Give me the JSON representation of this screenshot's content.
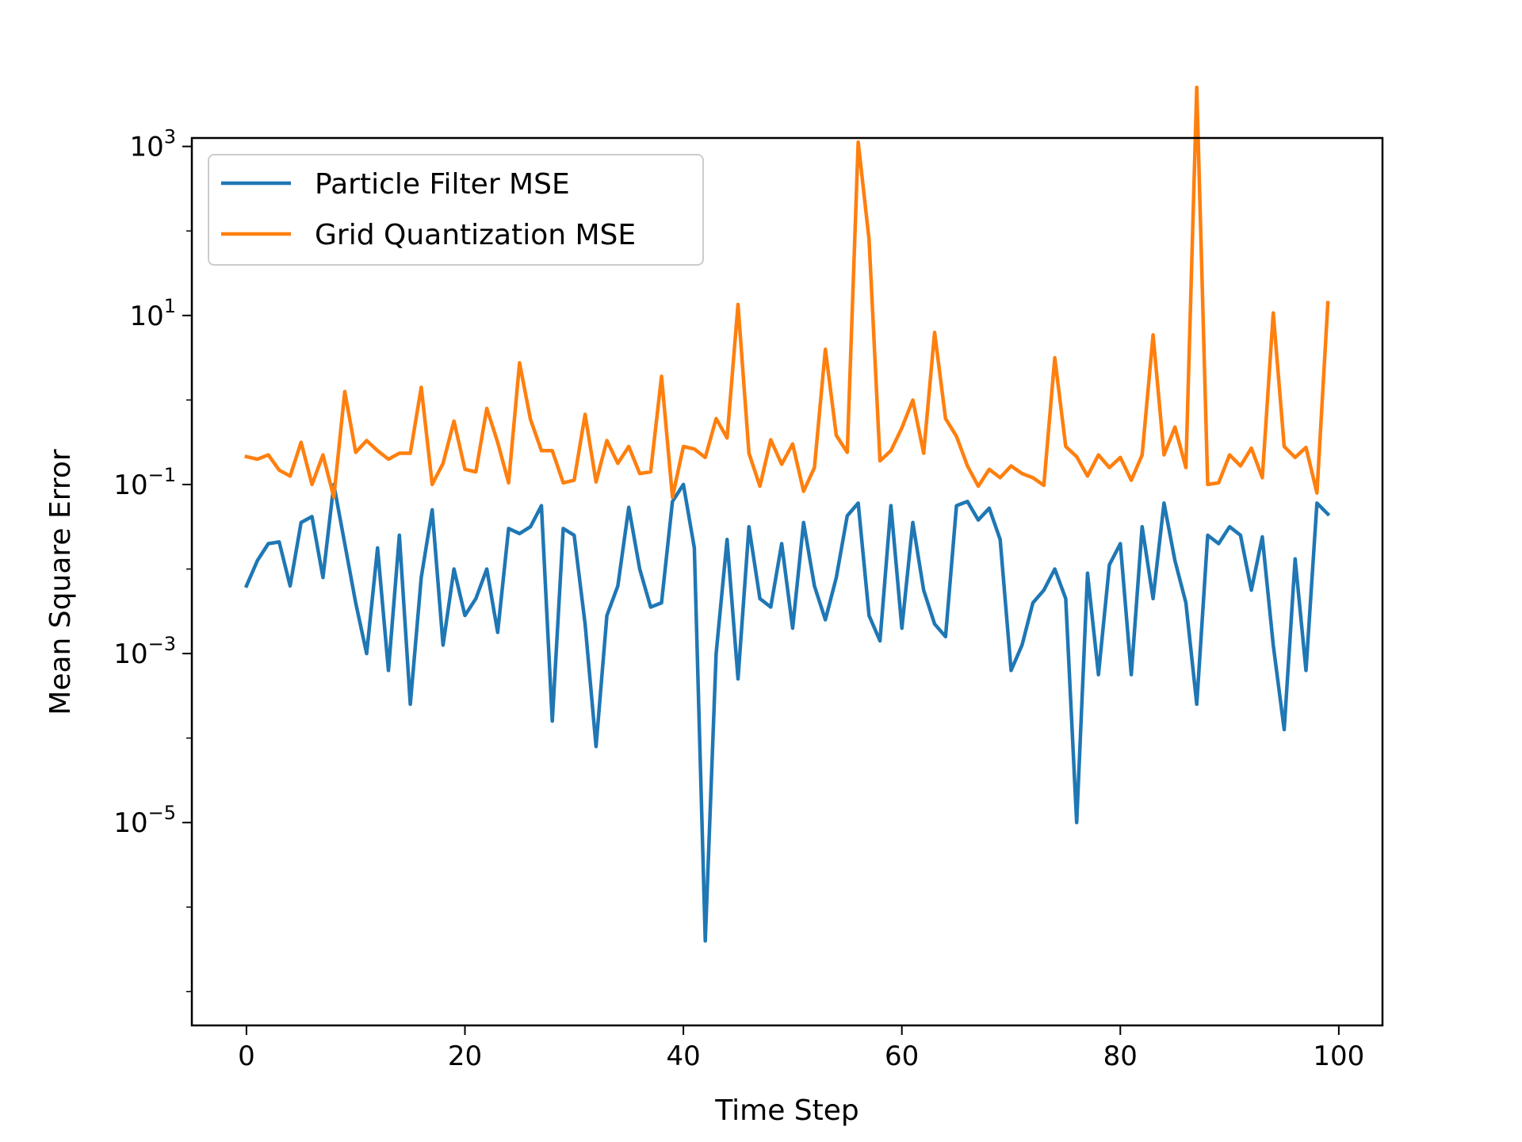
{
  "chart_data": {
    "type": "line",
    "title": "",
    "xlabel": "Time Step",
    "ylabel": "Mean Square Error",
    "yscale": "log",
    "xlim": [
      -5,
      104
    ],
    "ylim_log10": [
      -7.4,
      3.1
    ],
    "grid": false,
    "legend_position": "upper-left",
    "x_ticks": [
      {
        "value": 0,
        "label": "0"
      },
      {
        "value": 20,
        "label": "20"
      },
      {
        "value": 40,
        "label": "40"
      },
      {
        "value": 60,
        "label": "60"
      },
      {
        "value": 80,
        "label": "80"
      },
      {
        "value": 100,
        "label": "100"
      }
    ],
    "y_ticks": [
      {
        "exp": 3,
        "base": "10",
        "sup": "3"
      },
      {
        "exp": 1,
        "base": "10",
        "sup": "1"
      },
      {
        "exp": -1,
        "base": "10",
        "sup": "−1"
      },
      {
        "exp": -3,
        "base": "10",
        "sup": "−3"
      },
      {
        "exp": -5,
        "base": "10",
        "sup": "−5"
      }
    ],
    "series": [
      {
        "name": "Particle Filter MSE",
        "color": "#1f77b4",
        "log10_values": [
          -2.2,
          -1.9,
          -1.7,
          -1.68,
          -2.2,
          -1.45,
          -1.38,
          -2.1,
          -1.0,
          -1.7,
          -2.4,
          -3.0,
          -1.75,
          -3.2,
          -1.6,
          -3.6,
          -2.1,
          -1.3,
          -2.9,
          -2.0,
          -2.55,
          -2.35,
          -2.0,
          -2.75,
          -1.52,
          -1.58,
          -1.5,
          -1.25,
          -3.8,
          -1.52,
          -1.6,
          -2.65,
          -4.1,
          -2.55,
          -2.2,
          -1.27,
          -2.0,
          -2.45,
          -2.4,
          -1.2,
          -1.0,
          -1.75,
          -6.4,
          -3.0,
          -1.65,
          -3.3,
          -1.5,
          -2.35,
          -2.45,
          -1.7,
          -2.7,
          -1.45,
          -2.2,
          -2.6,
          -2.1,
          -1.37,
          -1.22,
          -2.55,
          -2.85,
          -1.25,
          -2.7,
          -1.45,
          -2.25,
          -2.65,
          -2.8,
          -1.25,
          -1.2,
          -1.42,
          -1.28,
          -1.65,
          -3.2,
          -2.9,
          -2.4,
          -2.25,
          -2.0,
          -2.35,
          -5.0,
          -2.05,
          -3.25,
          -1.95,
          -1.7,
          -3.25,
          -1.5,
          -2.35,
          -1.22,
          -1.9,
          -2.4,
          -3.6,
          -1.6,
          -1.7,
          -1.5,
          -1.6,
          -2.25,
          -1.62,
          -2.9,
          -3.9,
          -1.88,
          -3.2,
          -1.22,
          -1.35
        ]
      },
      {
        "name": "Grid Quantization MSE",
        "color": "#ff7f0e",
        "log10_values": [
          -0.67,
          -0.7,
          -0.65,
          -0.83,
          -0.9,
          -0.5,
          -1.0,
          -0.65,
          -1.15,
          0.1,
          -0.62,
          -0.48,
          -0.6,
          -0.7,
          -0.63,
          -0.63,
          0.15,
          -1.0,
          -0.75,
          -0.25,
          -0.82,
          -0.85,
          -0.1,
          -0.5,
          -0.98,
          0.44,
          -0.23,
          -0.6,
          -0.6,
          -0.98,
          -0.95,
          -0.17,
          -0.97,
          -0.48,
          -0.75,
          -0.55,
          -0.87,
          -0.85,
          0.28,
          -1.15,
          -0.55,
          -0.58,
          -0.68,
          -0.22,
          -0.45,
          1.13,
          -0.63,
          -1.02,
          -0.47,
          -0.76,
          -0.52,
          -1.08,
          -0.8,
          0.6,
          -0.42,
          -0.62,
          3.05,
          1.9,
          -0.72,
          -0.6,
          -0.33,
          0.0,
          -0.63,
          0.8,
          -0.22,
          -0.43,
          -0.78,
          -1.02,
          -0.82,
          -0.92,
          -0.78,
          -0.87,
          -0.92,
          -1.01,
          0.5,
          -0.55,
          -0.67,
          -0.9,
          -0.65,
          -0.8,
          -0.68,
          -0.95,
          -0.65,
          0.77,
          -0.65,
          -0.32,
          -0.8,
          3.7,
          -1.0,
          -0.98,
          -0.65,
          -0.78,
          -0.57,
          -0.92,
          1.03,
          -0.55,
          -0.68,
          -0.56,
          -1.1,
          1.15
        ]
      }
    ]
  }
}
